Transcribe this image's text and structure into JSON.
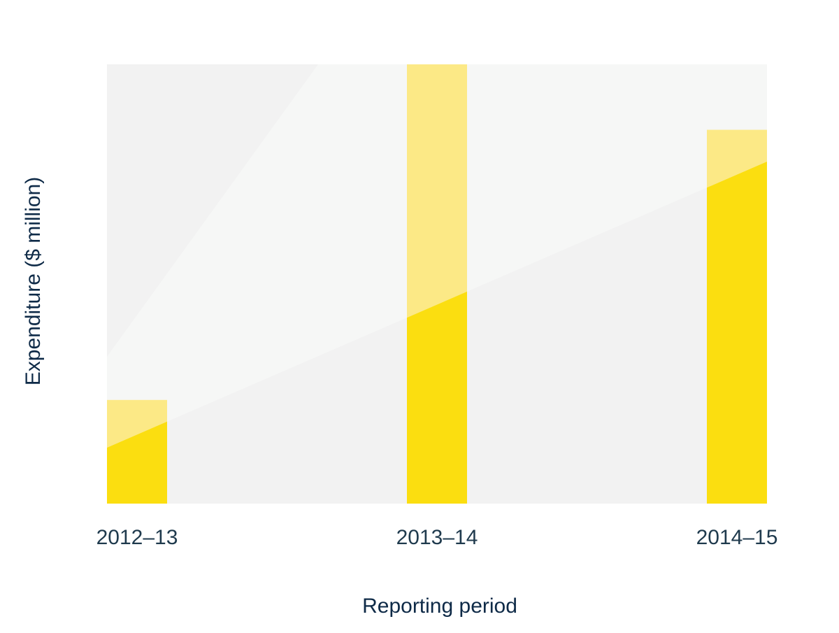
{
  "chart_data": {
    "type": "bar",
    "categories": [
      "2012–13",
      "2013–14",
      "2014–15"
    ],
    "values": [
      23.6,
      100,
      85.1
    ],
    "xlabel": "Reporting period",
    "ylabel": "Expenditure ($ million)",
    "ylim": [
      0,
      100
    ],
    "grid": false,
    "legend": "none"
  },
  "colors": {
    "bar": "#fbde10",
    "bar_light": "#fce986",
    "plot_background": "#f2f2f2",
    "light_band": "#f6f7f6",
    "text": "#0e2a47"
  }
}
